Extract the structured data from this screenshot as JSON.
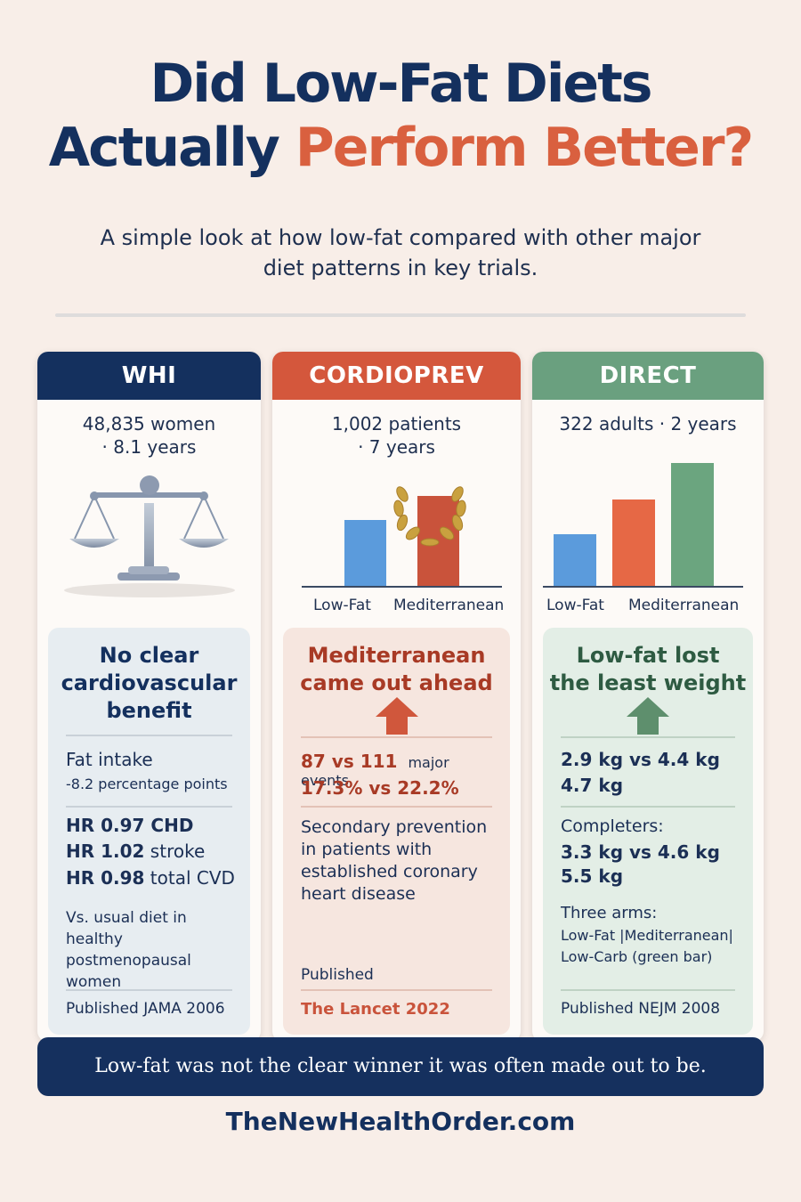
{
  "title": {
    "line1": "Did Low-Fat Diets",
    "line2_part1": "Actually ",
    "line2_part2": "Perform Better?"
  },
  "subtitle": {
    "line1": "A simple look at how low-fat compared with other major",
    "line2": "diet patterns in key trials."
  },
  "colors": {
    "navy": "#14305e",
    "orange": "#d9603f",
    "red": "#c9533b",
    "green": "#6aa07f",
    "blue_bar": "#5b9bdc",
    "orange_bar": "#e66845",
    "green_bar": "#6ba57f"
  },
  "cards": {
    "whi": {
      "header": "WHI",
      "sub_line1": "48,835 women",
      "sub_line2": "· 8.1 years",
      "icon": "balance-scale-icon",
      "verdict": "No clear cardiovascular benefit",
      "fat_intake_label": "Fat intake",
      "fat_intake_value": "-8.2 percentage points",
      "hr1_value": "HR 0.97 CHD",
      "hr2_value": "HR 1.02",
      "hr2_unit": " stroke",
      "hr3_value": "HR 0.98",
      "hr3_unit": " total CVD",
      "context": "Vs. usual diet in healthy postmenopausal women",
      "published": "Published JAMA 2006"
    },
    "cordioprev": {
      "header": "CORDIOPREV",
      "sub_line1": "1,002 patients",
      "sub_line2": "· 7 years",
      "icon": "laurel-wreath-icon",
      "bar_labels": [
        "Low-Fat",
        "Mediterranean"
      ],
      "bar_values": [
        0.55,
        0.75
      ],
      "verdict_line1": "Mediterranean",
      "verdict_line2": "came out ahead",
      "events_value": "87 vs 111",
      "events_label": "major events",
      "percent_value": "17.3% vs 22.2%",
      "context": "Secondary prevention in patients with established coronary heart disease",
      "published_label": "Published",
      "published_source": "The Lancet 2022"
    },
    "direct": {
      "header": "DIRECT",
      "sub_line1": "322 adults · 2 years",
      "bar_labels": [
        "Low-Fat",
        "Mediterranean"
      ],
      "bar_values": [
        0.42,
        0.7,
        1.0
      ],
      "verdict_line1": "Low-fat lost",
      "verdict_line2": "the least weight",
      "weight_line1": "2.9 kg vs 4.4 kg",
      "weight_line2": "4.7 kg",
      "completers_label": "Completers:",
      "completers_line1": "3.3 kg vs 4.6 kg",
      "completers_line2": "5.5 kg",
      "arms_label": "Three arms:",
      "arms_line1": "Low-Fat |Mediterranean|",
      "arms_line2": "Low-Carb (green bar)",
      "published": "Published NEJM 2008"
    }
  },
  "banner": "Low-fat was not the clear winner it was often made out to be.",
  "footer": "TheNewHealthOrder.com"
}
